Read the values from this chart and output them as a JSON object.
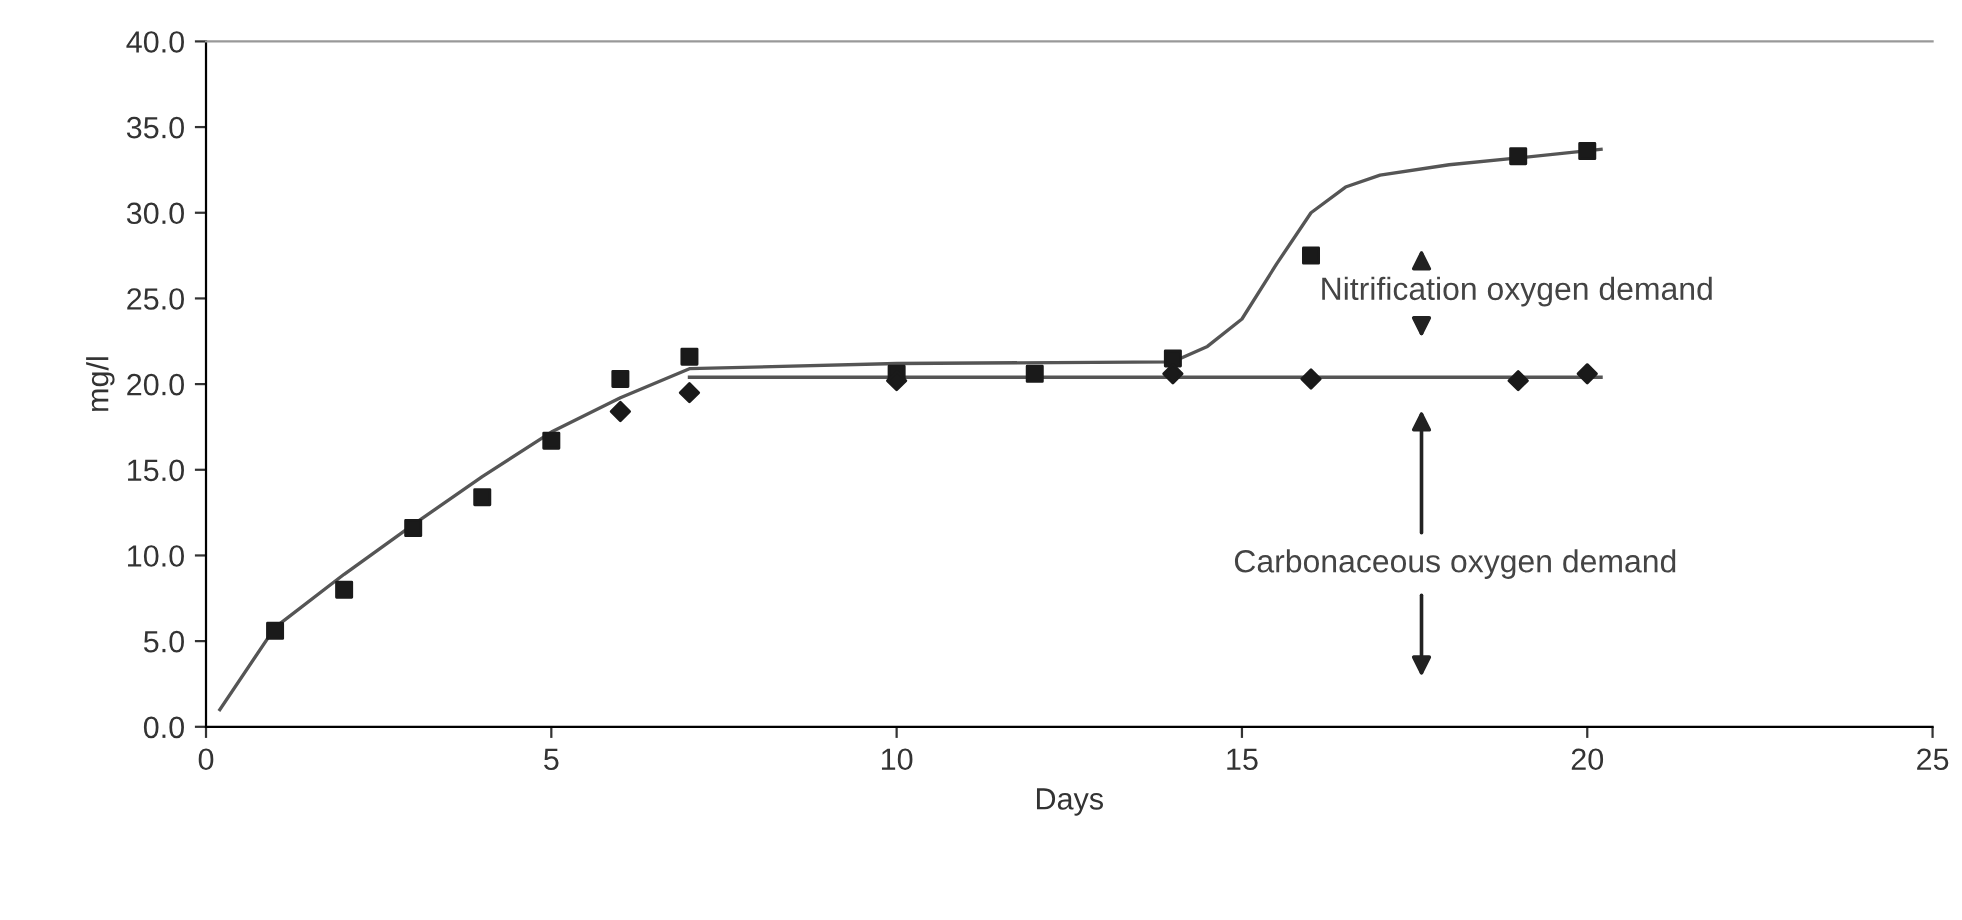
{
  "chart_data": {
    "type": "scatter",
    "xlabel": "Days",
    "ylabel": "mg/l",
    "xlim": [
      0,
      25
    ],
    "xticks": [
      0,
      5,
      10,
      15,
      20,
      25
    ],
    "ylim": [
      0,
      40
    ],
    "yticks": [
      {
        "value": 0,
        "label": "0.0"
      },
      {
        "value": 5,
        "label": "5.0"
      },
      {
        "value": 10,
        "label": "10.0"
      },
      {
        "value": 15,
        "label": "15.0"
      },
      {
        "value": 20,
        "label": "20.0"
      },
      {
        "value": 25,
        "label": "25.0"
      },
      {
        "value": 30,
        "label": "30.0"
      },
      {
        "value": 35,
        "label": "35.0"
      },
      {
        "value": 40,
        "label": "40.0"
      }
    ],
    "grid": false,
    "legend": false,
    "series": [
      {
        "marker": "square",
        "color": "#1a1a1a",
        "x": [
          1,
          2,
          3,
          4,
          5,
          6,
          7,
          10,
          12,
          14,
          16,
          19,
          20
        ],
        "values": [
          5.6,
          8.0,
          11.6,
          13.4,
          16.7,
          20.3,
          21.6,
          20.6,
          20.6,
          21.5,
          27.5,
          33.3,
          33.6
        ]
      },
      {
        "marker": "diamond",
        "color": "#1a1a1a",
        "x": [
          6,
          7,
          10,
          14,
          16,
          19,
          20
        ],
        "values": [
          18.4,
          19.5,
          20.2,
          20.6,
          20.3,
          20.2,
          20.6
        ]
      },
      {
        "type": "line",
        "marker": "none",
        "line_style": "solid",
        "color": "#555555",
        "x": [
          0.2,
          1,
          2,
          3,
          4,
          5,
          6,
          7,
          10,
          14,
          14.5,
          15,
          15.5,
          16,
          16.5,
          17,
          18,
          19,
          20.2
        ],
        "values": [
          1.0,
          5.8,
          8.9,
          11.8,
          14.6,
          17.2,
          19.2,
          20.9,
          21.2,
          21.3,
          22.2,
          23.8,
          27.0,
          30.0,
          31.5,
          32.2,
          32.8,
          33.2,
          33.7
        ]
      },
      {
        "type": "line",
        "marker": "none",
        "line_style": "solid",
        "color": "#555555",
        "x": [
          7,
          20.2
        ],
        "values": [
          20.4,
          20.4
        ]
      }
    ],
    "annotations": [
      "Nitrification oxygen demand",
      "Carbonaceous oxygen demand"
    ]
  }
}
